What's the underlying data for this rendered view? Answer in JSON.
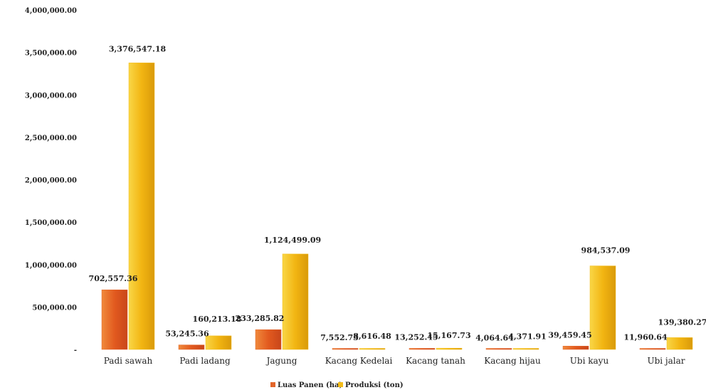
{
  "chart_data": {
    "type": "bar",
    "title": "",
    "xlabel": "",
    "ylabel": "",
    "categories": [
      "Padi sawah",
      "Padi ladang",
      "Jagung",
      "Kacang Kedelai",
      "Kacang tanah",
      "Kacang hijau",
      "Ubi kayu",
      "Ubi jalar"
    ],
    "series": [
      {
        "name": "Luas Panen (ha)",
        "color": "#e2652a",
        "values": [
          702557.36,
          53245.36,
          233285.82,
          7552.73,
          13252.45,
          4064.64,
          39459.45,
          11960.64
        ],
        "labels": [
          "702,557.36",
          "53,245.36",
          "233,285.82",
          "7,552.73",
          "13,252.45",
          "4,064.64",
          "39,459.45",
          "11,960.64"
        ]
      },
      {
        "name": "Produksi (ton)",
        "color": "#f3bc18",
        "values": [
          3376547.18,
          160213.18,
          1124499.09,
          8616.48,
          15167.73,
          4371.91,
          984537.09,
          139380.27
        ],
        "labels": [
          "3,376,547.18",
          "160,213.18",
          "1,124,499.09",
          "8,616.48",
          "15,167.73",
          "4,371.91",
          "984,537.09",
          "139,380.27"
        ]
      }
    ],
    "ylim": [
      0,
      4000000
    ],
    "yticks": [
      0,
      500000,
      1000000,
      1500000,
      2000000,
      2500000,
      3000000,
      3500000,
      4000000
    ],
    "ytick_labels": [
      "-",
      "500,000.00",
      "1,000,000.00",
      "1,500,000.00",
      "2,000,000.00",
      "2,500,000.00",
      "3,000,000.00",
      "3,500,000.00",
      "4,000,000.00"
    ],
    "grid": false,
    "legend_position": "bottom-center"
  }
}
